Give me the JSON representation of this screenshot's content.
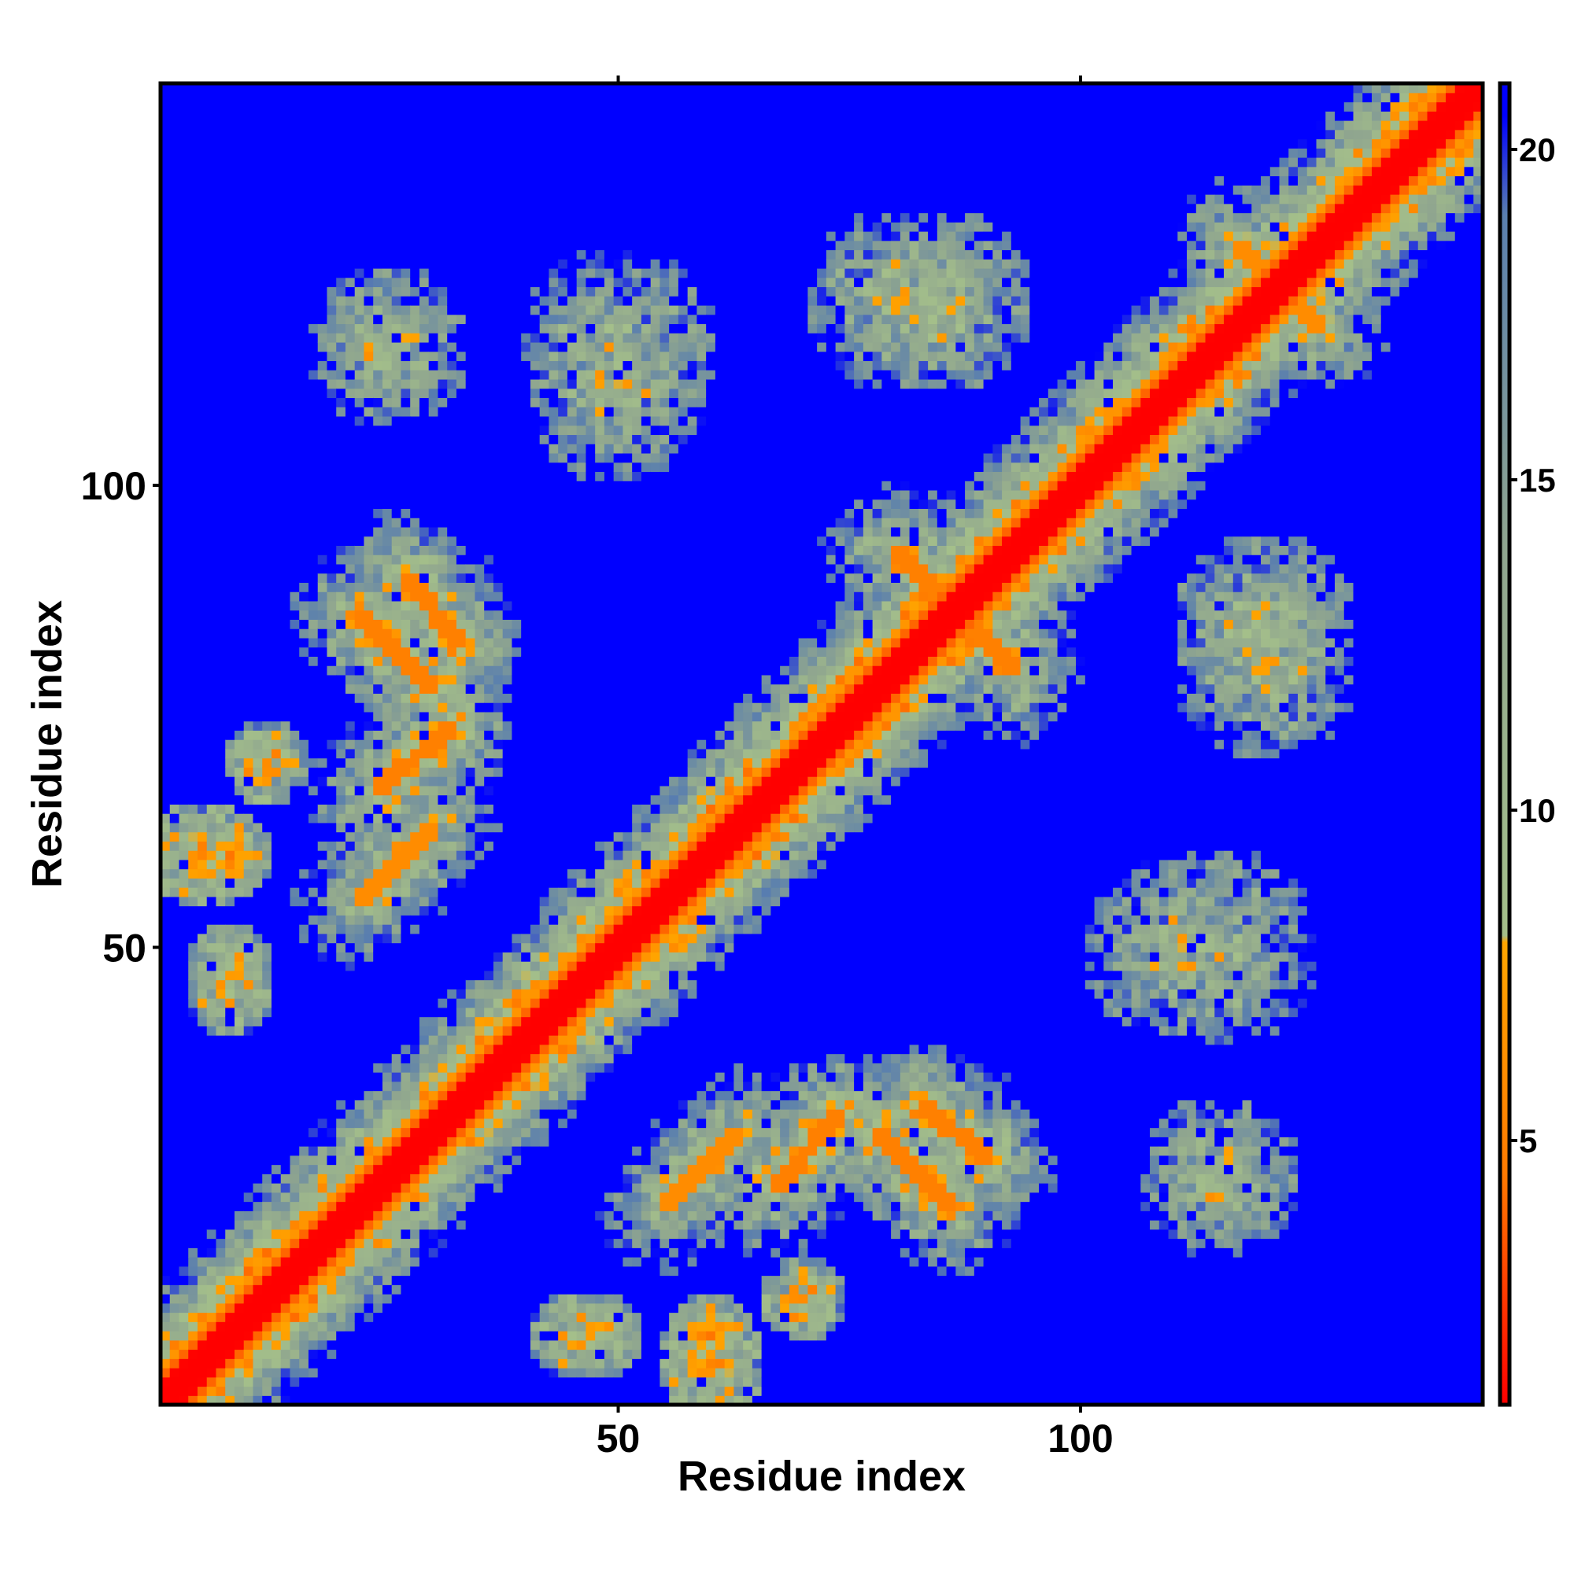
{
  "chart_data": {
    "type": "heatmap",
    "title": "",
    "xlabel": "Residue index",
    "ylabel": "Residue index",
    "xlim": [
      1,
      143
    ],
    "ylim": [
      1,
      143
    ],
    "x_ticks": [
      {
        "value": 50,
        "label": "50"
      },
      {
        "value": 100,
        "label": "100"
      }
    ],
    "y_ticks": [
      {
        "value": 50,
        "label": "50"
      },
      {
        "value": 100,
        "label": "100"
      }
    ],
    "colorbar": {
      "range": [
        1,
        21
      ],
      "ticks": [
        {
          "value": 5,
          "label": "5"
        },
        {
          "value": 10,
          "label": "10"
        },
        {
          "value": 15,
          "label": "15"
        },
        {
          "value": 20,
          "label": "20"
        }
      ],
      "stops": [
        {
          "value": 1,
          "color": "#ff0000"
        },
        {
          "value": 4.5,
          "color": "#ff7a00"
        },
        {
          "value": 8,
          "color": "#ffa500"
        },
        {
          "value": 8.1,
          "color": "#a4bf8a"
        },
        {
          "value": 14,
          "color": "#8fa58f"
        },
        {
          "value": 19,
          "color": "#5a7fae"
        },
        {
          "value": 20.5,
          "color": "#0000ff"
        },
        {
          "value": 21,
          "color": "#0000ff"
        }
      ]
    },
    "matrix_description": "Symmetric residue–residue distance map (Å-like units, clipped at 21); diagonal band near 1, off-diagonal contact streaks of ~5–12, background >=21.",
    "contact_features": [
      {
        "kind": "diagonal",
        "x_range": [
          1,
          143
        ],
        "width": 3.5,
        "value": 1
      },
      {
        "kind": "antiparallel",
        "a": [
          27,
          90
        ],
        "b": [
          33,
          83
        ],
        "value": 5
      },
      {
        "kind": "antiparallel",
        "a": [
          24,
          67
        ],
        "b": [
          32,
          74
        ],
        "value": 5
      },
      {
        "kind": "antiparallel",
        "a": [
          55,
          22
        ],
        "b": [
          63,
          30
        ],
        "value": 6
      },
      {
        "kind": "antiparallel",
        "a": [
          78,
          30
        ],
        "b": [
          86,
          22
        ],
        "value": 5
      },
      {
        "kind": "antiparallel",
        "a": [
          80,
          93
        ],
        "b": [
          92,
          81
        ],
        "value": 5
      },
      {
        "kind": "parallel",
        "a": [
          117,
          126
        ],
        "b": [
          125,
          118
        ],
        "value": 6
      },
      {
        "kind": "patch",
        "center": [
          5,
          60
        ],
        "radius": 6,
        "value": 6
      },
      {
        "kind": "patch",
        "center": [
          8,
          45
        ],
        "radius": 5,
        "value": 7
      },
      {
        "kind": "patch",
        "center": [
          48,
          8
        ],
        "radius": 5,
        "value": 7
      },
      {
        "kind": "patch",
        "center": [
          60,
          8
        ],
        "radius": 5,
        "value": 6
      },
      {
        "kind": "patch",
        "center": [
          70,
          12
        ],
        "radius": 5,
        "value": 6
      },
      {
        "kind": "patch",
        "center": [
          50,
          110
        ],
        "radius": 10,
        "value": 10
      },
      {
        "kind": "patch",
        "center": [
          85,
          120
        ],
        "radius": 10,
        "value": 9
      },
      {
        "kind": "patch",
        "center": [
          115,
          50
        ],
        "radius": 11,
        "value": 10
      },
      {
        "kind": "patch",
        "center": [
          120,
          80
        ],
        "radius": 10,
        "value": 10
      },
      {
        "kind": "patch",
        "center": [
          115,
          25
        ],
        "radius": 9,
        "value": 10
      },
      {
        "kind": "patch",
        "center": [
          25,
          115
        ],
        "radius": 8,
        "value": 10
      }
    ]
  }
}
